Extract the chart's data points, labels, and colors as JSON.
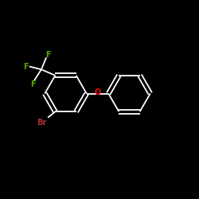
{
  "background_color": "#000000",
  "bond_color": "#ffffff",
  "atom_colors": {
    "F": "#55aa00",
    "Br": "#aa3333",
    "O": "#ff0000",
    "C": "#ffffff"
  },
  "figsize": [
    2.5,
    2.5
  ],
  "dpi": 100,
  "lw": 1.3,
  "font_size": 7.0
}
